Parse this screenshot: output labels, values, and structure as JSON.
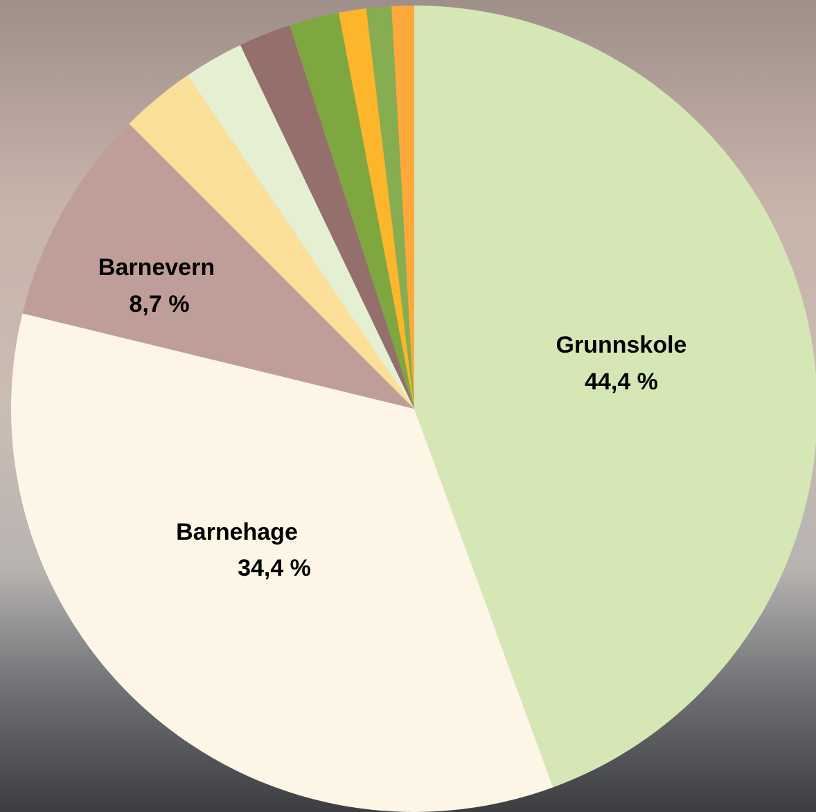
{
  "chart_data": {
    "type": "pie",
    "categories": [
      "Grunnskole",
      "Barnehage",
      "Barnevern",
      null,
      null,
      null,
      null,
      null,
      null,
      null
    ],
    "values": [
      44.4,
      34.4,
      8.7,
      3.0,
      2.4,
      2.1,
      2.0,
      1.1,
      1.0,
      0.9
    ],
    "value_labels": [
      "44,4 %",
      "34,4 %",
      "8,7 %",
      null,
      null,
      null,
      null,
      null,
      null,
      null
    ],
    "colors": [
      "#d6e7b6",
      "#fdf6e7",
      "#bf9e9a",
      "#fcdf98",
      "#e5f0d3",
      "#956f6c",
      "#7fa73f",
      "#fdb52b",
      "#86ad4f",
      "#fea93a"
    ]
  }
}
